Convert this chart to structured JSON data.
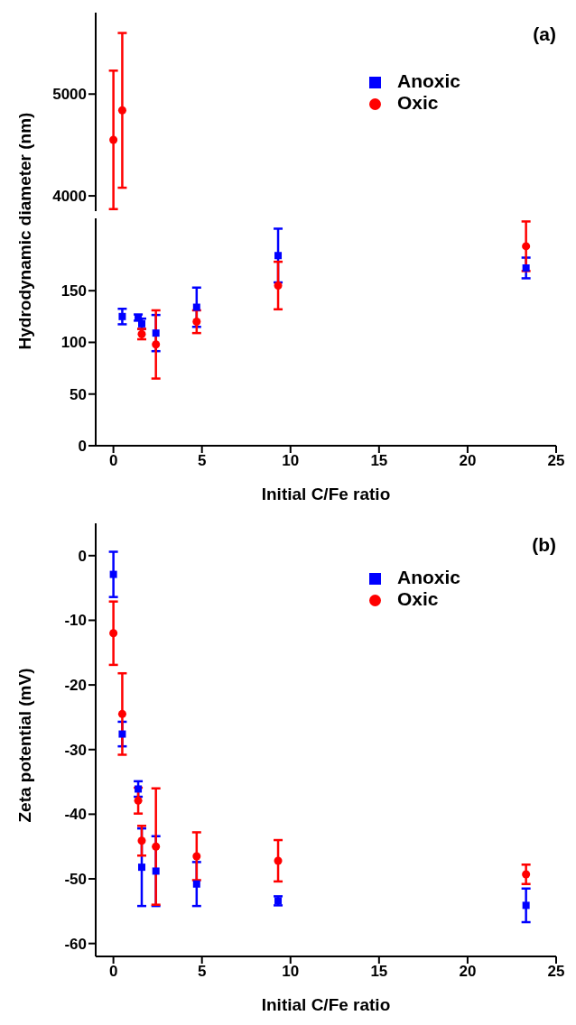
{
  "chart_data": [
    {
      "type": "scatter",
      "annotations": [
        "(a)"
      ],
      "xlim": [
        -1,
        25
      ],
      "xticks": [
        0,
        5,
        10,
        15,
        20,
        25
      ],
      "ylim": [
        3850,
        5800
      ],
      "yticks": [
        4000,
        5000
      ],
      "tick_labels": "y",
      "legend": "top right",
      "grid": false,
      "series": [
        {
          "name": "Anoxic",
          "color": "#0000ff",
          "marker": "square"
        },
        {
          "name": "Oxic",
          "color": "#ff0000",
          "marker": "circle",
          "x": [
            0,
            0.5
          ],
          "values": [
            4550,
            4840
          ],
          "errors": [
            680,
            760
          ]
        }
      ]
    },
    {
      "type": "scatter",
      "xlabel": "Initial C/Fe ratio",
      "ylabel": "Hydrodynamic diameter (nm)",
      "xlim": [
        -1,
        25
      ],
      "xticks": [
        0,
        5,
        10,
        15,
        20,
        25
      ],
      "ylim": [
        0,
        220
      ],
      "yticks": [
        0,
        50,
        100,
        150
      ],
      "grid": false,
      "series": [
        {
          "color": "#0000ff",
          "marker": "square",
          "x": [
            0.5,
            1.4,
            1.6,
            2.4,
            4.7,
            9.3,
            23.3
          ],
          "values": [
            125,
            124,
            118,
            109,
            134,
            184,
            172
          ],
          "errors": [
            7.5,
            3,
            5,
            17.5,
            19,
            26,
            10
          ]
        },
        {
          "color": "#ff0000",
          "marker": "circle",
          "x": [
            1.6,
            2.4,
            4.7,
            9.3,
            23.3
          ],
          "values": [
            108,
            98,
            120,
            155,
            193
          ],
          "errors": [
            5,
            33,
            11,
            23,
            24
          ]
        }
      ]
    },
    {
      "type": "scatter",
      "annotations": [
        "(b)"
      ],
      "xlabel": "Initial C/Fe ratio",
      "ylabel": "Zeta potential (mV)",
      "xlim": [
        -1,
        25
      ],
      "xticks": [
        0,
        5,
        10,
        15,
        20,
        25
      ],
      "ylim": [
        -62,
        5
      ],
      "yticks": [
        -60,
        -50,
        -40,
        -30,
        -20,
        -10,
        0
      ],
      "legend": "top right",
      "grid": false,
      "series": [
        {
          "name": "Anoxic",
          "color": "#0000ff",
          "marker": "square",
          "x": [
            0,
            0.5,
            1.4,
            1.6,
            2.4,
            4.7,
            9.3,
            23.3
          ],
          "values": [
            -2.9,
            -27.6,
            -36.1,
            -48.2,
            -48.8,
            -50.8,
            -53.4,
            -54.1
          ],
          "errors": [
            3.5,
            1.9,
            1.2,
            6,
            5.4,
            3.4,
            0.7,
            2.6
          ]
        },
        {
          "name": "Oxic",
          "color": "#ff0000",
          "marker": "circle",
          "x": [
            0,
            0.5,
            1.4,
            1.6,
            2.4,
            4.7,
            9.3,
            23.3
          ],
          "values": [
            -12,
            -24.5,
            -37.9,
            -44.1,
            -45,
            -46.5,
            -47.2,
            -49.3
          ],
          "errors": [
            4.9,
            6.3,
            2,
            2.3,
            9,
            3.7,
            3.2,
            1.5
          ]
        }
      ]
    }
  ]
}
